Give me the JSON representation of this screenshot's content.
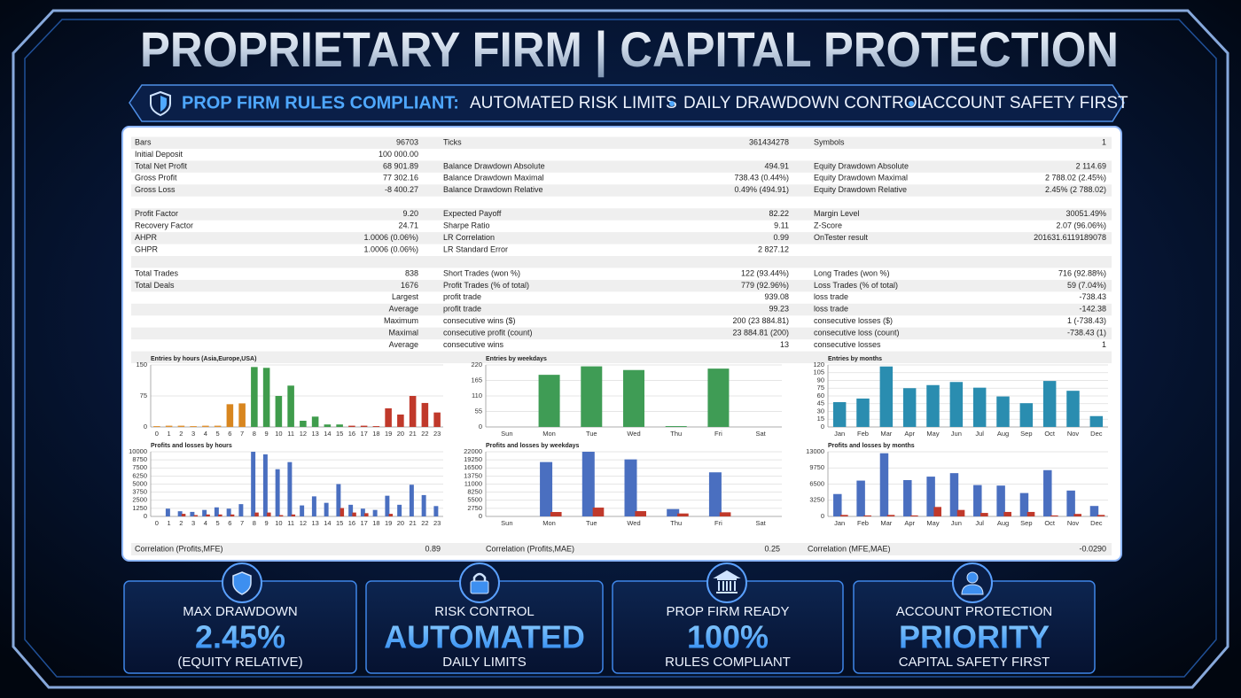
{
  "header": {
    "title": "PROPRIETARY FIRM | CAPITAL PROTECTION",
    "banner_label": "PROP FIRM RULES COMPLIANT:",
    "banner_items": [
      "AUTOMATED RISK LIMITS",
      "DAILY DRAWDOWN CONTROL",
      "ACCOUNT SAFETY FIRST"
    ]
  },
  "report": {
    "sections": [
      [
        [
          "Bars",
          "96703",
          "Ticks",
          "361434278",
          "Symbols",
          "1"
        ],
        [
          "Initial Deposit",
          "100 000.00",
          null,
          null,
          null,
          null
        ],
        [
          "Total Net Profit",
          "68 901.89",
          "Balance Drawdown Absolute",
          "494.91",
          "Equity Drawdown Absolute",
          "2 114.69"
        ],
        [
          "Gross Profit",
          "77 302.16",
          "Balance Drawdown Maximal",
          "738.43 (0.44%)",
          "Equity Drawdown Maximal",
          "2 788.02 (2.45%)"
        ],
        [
          "Gross Loss",
          "-8 400.27",
          "Balance Drawdown Relative",
          "0.49% (494.91)",
          "Equity Drawdown Relative",
          "2.45% (2 788.02)"
        ]
      ],
      [
        [
          "Profit Factor",
          "9.20",
          "Expected Payoff",
          "82.22",
          "Margin Level",
          "30051.49%"
        ],
        [
          "Recovery Factor",
          "24.71",
          "Sharpe Ratio",
          "9.11",
          "Z-Score",
          "2.07 (96.06%)"
        ],
        [
          "AHPR",
          "1.0006 (0.06%)",
          "LR Correlation",
          "0.99",
          "OnTester result",
          "201631.6119189078"
        ],
        [
          "GHPR",
          "1.0006 (0.06%)",
          "LR Standard Error",
          "2 827.12",
          null,
          null
        ]
      ],
      [
        [
          "Total Trades",
          "838",
          "Short Trades (won %)",
          "122 (93.44%)",
          "Long Trades (won %)",
          "716 (92.88%)"
        ],
        [
          "Total Deals",
          "1676",
          "Profit Trades (% of total)",
          "779 (92.96%)",
          "Loss Trades (% of total)",
          "59 (7.04%)"
        ],
        [
          null,
          "Largest",
          "profit trade",
          "939.08",
          "loss trade",
          "-738.43"
        ],
        [
          null,
          "Average",
          "profit trade",
          "99.23",
          "loss trade",
          "-142.38"
        ],
        [
          null,
          "Maximum",
          "consecutive wins ($)",
          "200 (23 884.81)",
          "consecutive losses ($)",
          "1 (-738.43)"
        ],
        [
          null,
          "Maximal",
          "consecutive profit (count)",
          "23 884.81 (200)",
          "consecutive loss (count)",
          "-738.43 (1)"
        ],
        [
          null,
          "Average",
          "consecutive wins",
          "13",
          "consecutive losses",
          "1"
        ]
      ]
    ],
    "correlations": [
      {
        "label": "Correlation (Profits,MFE)",
        "value": "0.89"
      },
      {
        "label": "Correlation (Profits,MAE)",
        "value": "0.25"
      },
      {
        "label": "Correlation (MFE,MAE)",
        "value": "-0.0290"
      }
    ]
  },
  "chart_data": [
    {
      "type": "bar",
      "title": "Entries by hours (Asia,Europe,USA)",
      "categories": [
        "0",
        "1",
        "2",
        "3",
        "4",
        "5",
        "6",
        "7",
        "8",
        "9",
        "10",
        "11",
        "12",
        "13",
        "14",
        "15",
        "16",
        "17",
        "18",
        "19",
        "20",
        "21",
        "22",
        "23"
      ],
      "values": [
        2,
        3,
        3,
        2,
        3,
        3,
        55,
        57,
        145,
        143,
        75,
        100,
        15,
        25,
        6,
        6,
        3,
        3,
        2,
        45,
        30,
        75,
        58,
        35
      ],
      "colors": [
        "#e0912f",
        "#e0912f",
        "#e0912f",
        "#e0912f",
        "#e0912f",
        "#e0912f",
        "#d8861f",
        "#d8861f",
        "#3f9c4c",
        "#3f9c4c",
        "#3f9c4c",
        "#3f9c4c",
        "#3f9c4c",
        "#3f9c4c",
        "#3f9c4c",
        "#3f9c4c",
        "#c0392b",
        "#c0392b",
        "#c0392b",
        "#c0392b",
        "#c0392b",
        "#c0392b",
        "#c0392b",
        "#c0392b"
      ],
      "ylim": [
        0,
        150
      ],
      "yticks": [
        0,
        75,
        150
      ],
      "grid": true
    },
    {
      "type": "bar",
      "title": "Entries by weekdays",
      "categories": [
        "Sun",
        "Mon",
        "Tue",
        "Wed",
        "Thu",
        "Fri",
        "Sat"
      ],
      "values": [
        0,
        185,
        215,
        202,
        3,
        207,
        0
      ],
      "color": "#3f9c55",
      "ylim": [
        0,
        220
      ],
      "yticks": [
        0,
        55,
        110,
        165,
        220
      ],
      "grid": true
    },
    {
      "type": "bar",
      "title": "Entries by months",
      "categories": [
        "Jan",
        "Feb",
        "Mar",
        "Apr",
        "May",
        "Jun",
        "Jul",
        "Aug",
        "Sep",
        "Oct",
        "Nov",
        "Dec"
      ],
      "values": [
        48,
        55,
        117,
        75,
        81,
        87,
        76,
        59,
        46,
        89,
        70,
        21
      ],
      "color": "#2a8db0",
      "ylim": [
        0,
        120
      ],
      "yticks": [
        0,
        15,
        30,
        45,
        60,
        75,
        90,
        105,
        120
      ],
      "grid": true
    },
    {
      "type": "bar",
      "title": "Profits and losses by hours",
      "categories": [
        "0",
        "1",
        "2",
        "3",
        "4",
        "5",
        "6",
        "7",
        "8",
        "9",
        "10",
        "11",
        "12",
        "13",
        "14",
        "15",
        "16",
        "17",
        "18",
        "19",
        "20",
        "21",
        "22",
        "23"
      ],
      "series": [
        {
          "color": "#4a6fc0",
          "values": [
            0,
            1200,
            800,
            700,
            1000,
            1400,
            1200,
            1900,
            10000,
            9600,
            7300,
            8400,
            1700,
            3100,
            2100,
            5000,
            1800,
            1200,
            1000,
            3200,
            1800,
            4900,
            3300,
            1600
          ]
        },
        {
          "color": "#c0392b",
          "values": [
            0,
            0,
            400,
            200,
            300,
            300,
            300,
            0,
            600,
            600,
            200,
            300,
            0,
            0,
            0,
            1300,
            600,
            500,
            0,
            400,
            0,
            0,
            0,
            0
          ]
        }
      ],
      "ylim": [
        0,
        10000
      ],
      "yticks": [
        0,
        1250,
        2500,
        3750,
        5000,
        6250,
        7500,
        8750,
        10000
      ],
      "grid": true
    },
    {
      "type": "bar",
      "title": "Profits and losses by weekdays",
      "categories": [
        "Sun",
        "Mon",
        "Tue",
        "Wed",
        "Thu",
        "Fri",
        "Sat"
      ],
      "series": [
        {
          "color": "#4a6fc0",
          "values": [
            0,
            18500,
            22000,
            19400,
            2500,
            15000,
            0
          ]
        },
        {
          "color": "#c0392b",
          "values": [
            0,
            1500,
            3000,
            1800,
            1000,
            1400,
            0
          ]
        }
      ],
      "ylim": [
        0,
        22000
      ],
      "yticks": [
        0,
        2750,
        5500,
        8250,
        11000,
        13750,
        16500,
        19250,
        22000
      ],
      "grid": true
    },
    {
      "type": "bar",
      "title": "Profits and losses by months",
      "categories": [
        "Jan",
        "Feb",
        "Mar",
        "Apr",
        "May",
        "Jun",
        "Jul",
        "Aug",
        "Sep",
        "Oct",
        "Nov",
        "Dec"
      ],
      "series": [
        {
          "color": "#4a6fc0",
          "values": [
            4500,
            7200,
            12700,
            7300,
            8000,
            8700,
            6300,
            6200,
            4700,
            9300,
            5200,
            2100
          ]
        },
        {
          "color": "#c0392b",
          "values": [
            300,
            200,
            300,
            200,
            1900,
            1300,
            700,
            900,
            900,
            200,
            500,
            300
          ]
        }
      ],
      "ylim": [
        0,
        13000
      ],
      "yticks": [
        0,
        3250,
        6500,
        9750,
        13000
      ],
      "grid": true
    }
  ],
  "cards": [
    {
      "title": "MAX DRAWDOWN",
      "value": "2.45%",
      "subtitle": "(EQUITY RELATIVE)"
    },
    {
      "title": "RISK CONTROL",
      "value": "AUTOMATED",
      "subtitle": "DAILY LIMITS"
    },
    {
      "title": "PROP FIRM READY",
      "value": "100%",
      "subtitle": "RULES COMPLIANT"
    },
    {
      "title": "ACCOUNT PROTECTION",
      "value": "PRIORITY",
      "subtitle": "CAPITAL SAFETY FIRST"
    }
  ]
}
